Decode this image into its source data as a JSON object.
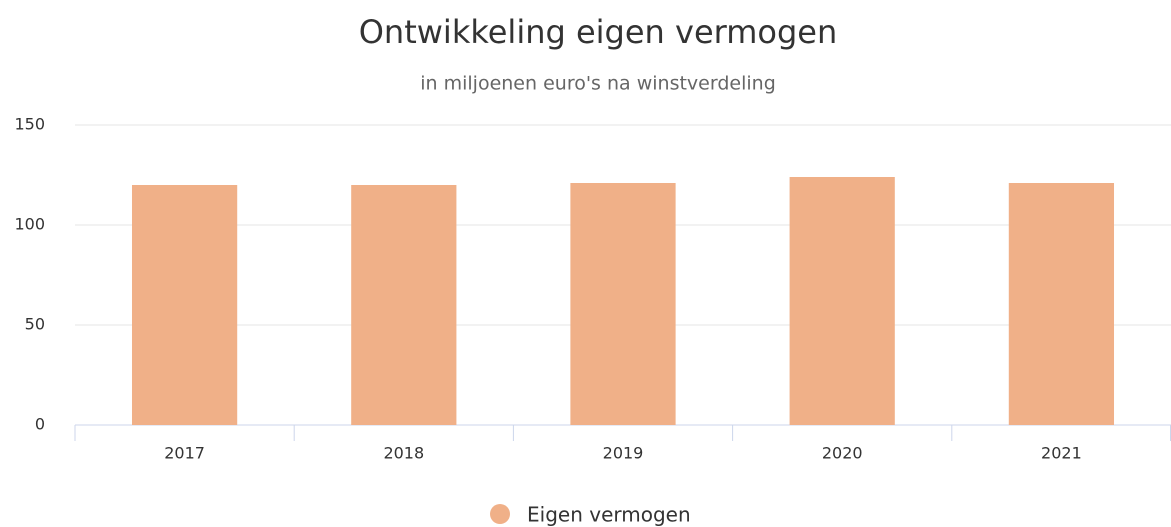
{
  "chart_data": {
    "type": "bar",
    "title": "Ontwikkeling eigen vermogen",
    "subtitle": "in miljoenen euro's na winstverdeling",
    "categories": [
      "2017",
      "2018",
      "2019",
      "2020",
      "2021"
    ],
    "series": [
      {
        "name": "Eigen vermogen",
        "color": "#f0b088",
        "values": [
          120,
          120,
          121,
          124,
          121
        ]
      }
    ],
    "ylim": [
      0,
      150
    ],
    "yticks": [
      0,
      50,
      100,
      150
    ],
    "grid": true,
    "legend": "bottom"
  }
}
